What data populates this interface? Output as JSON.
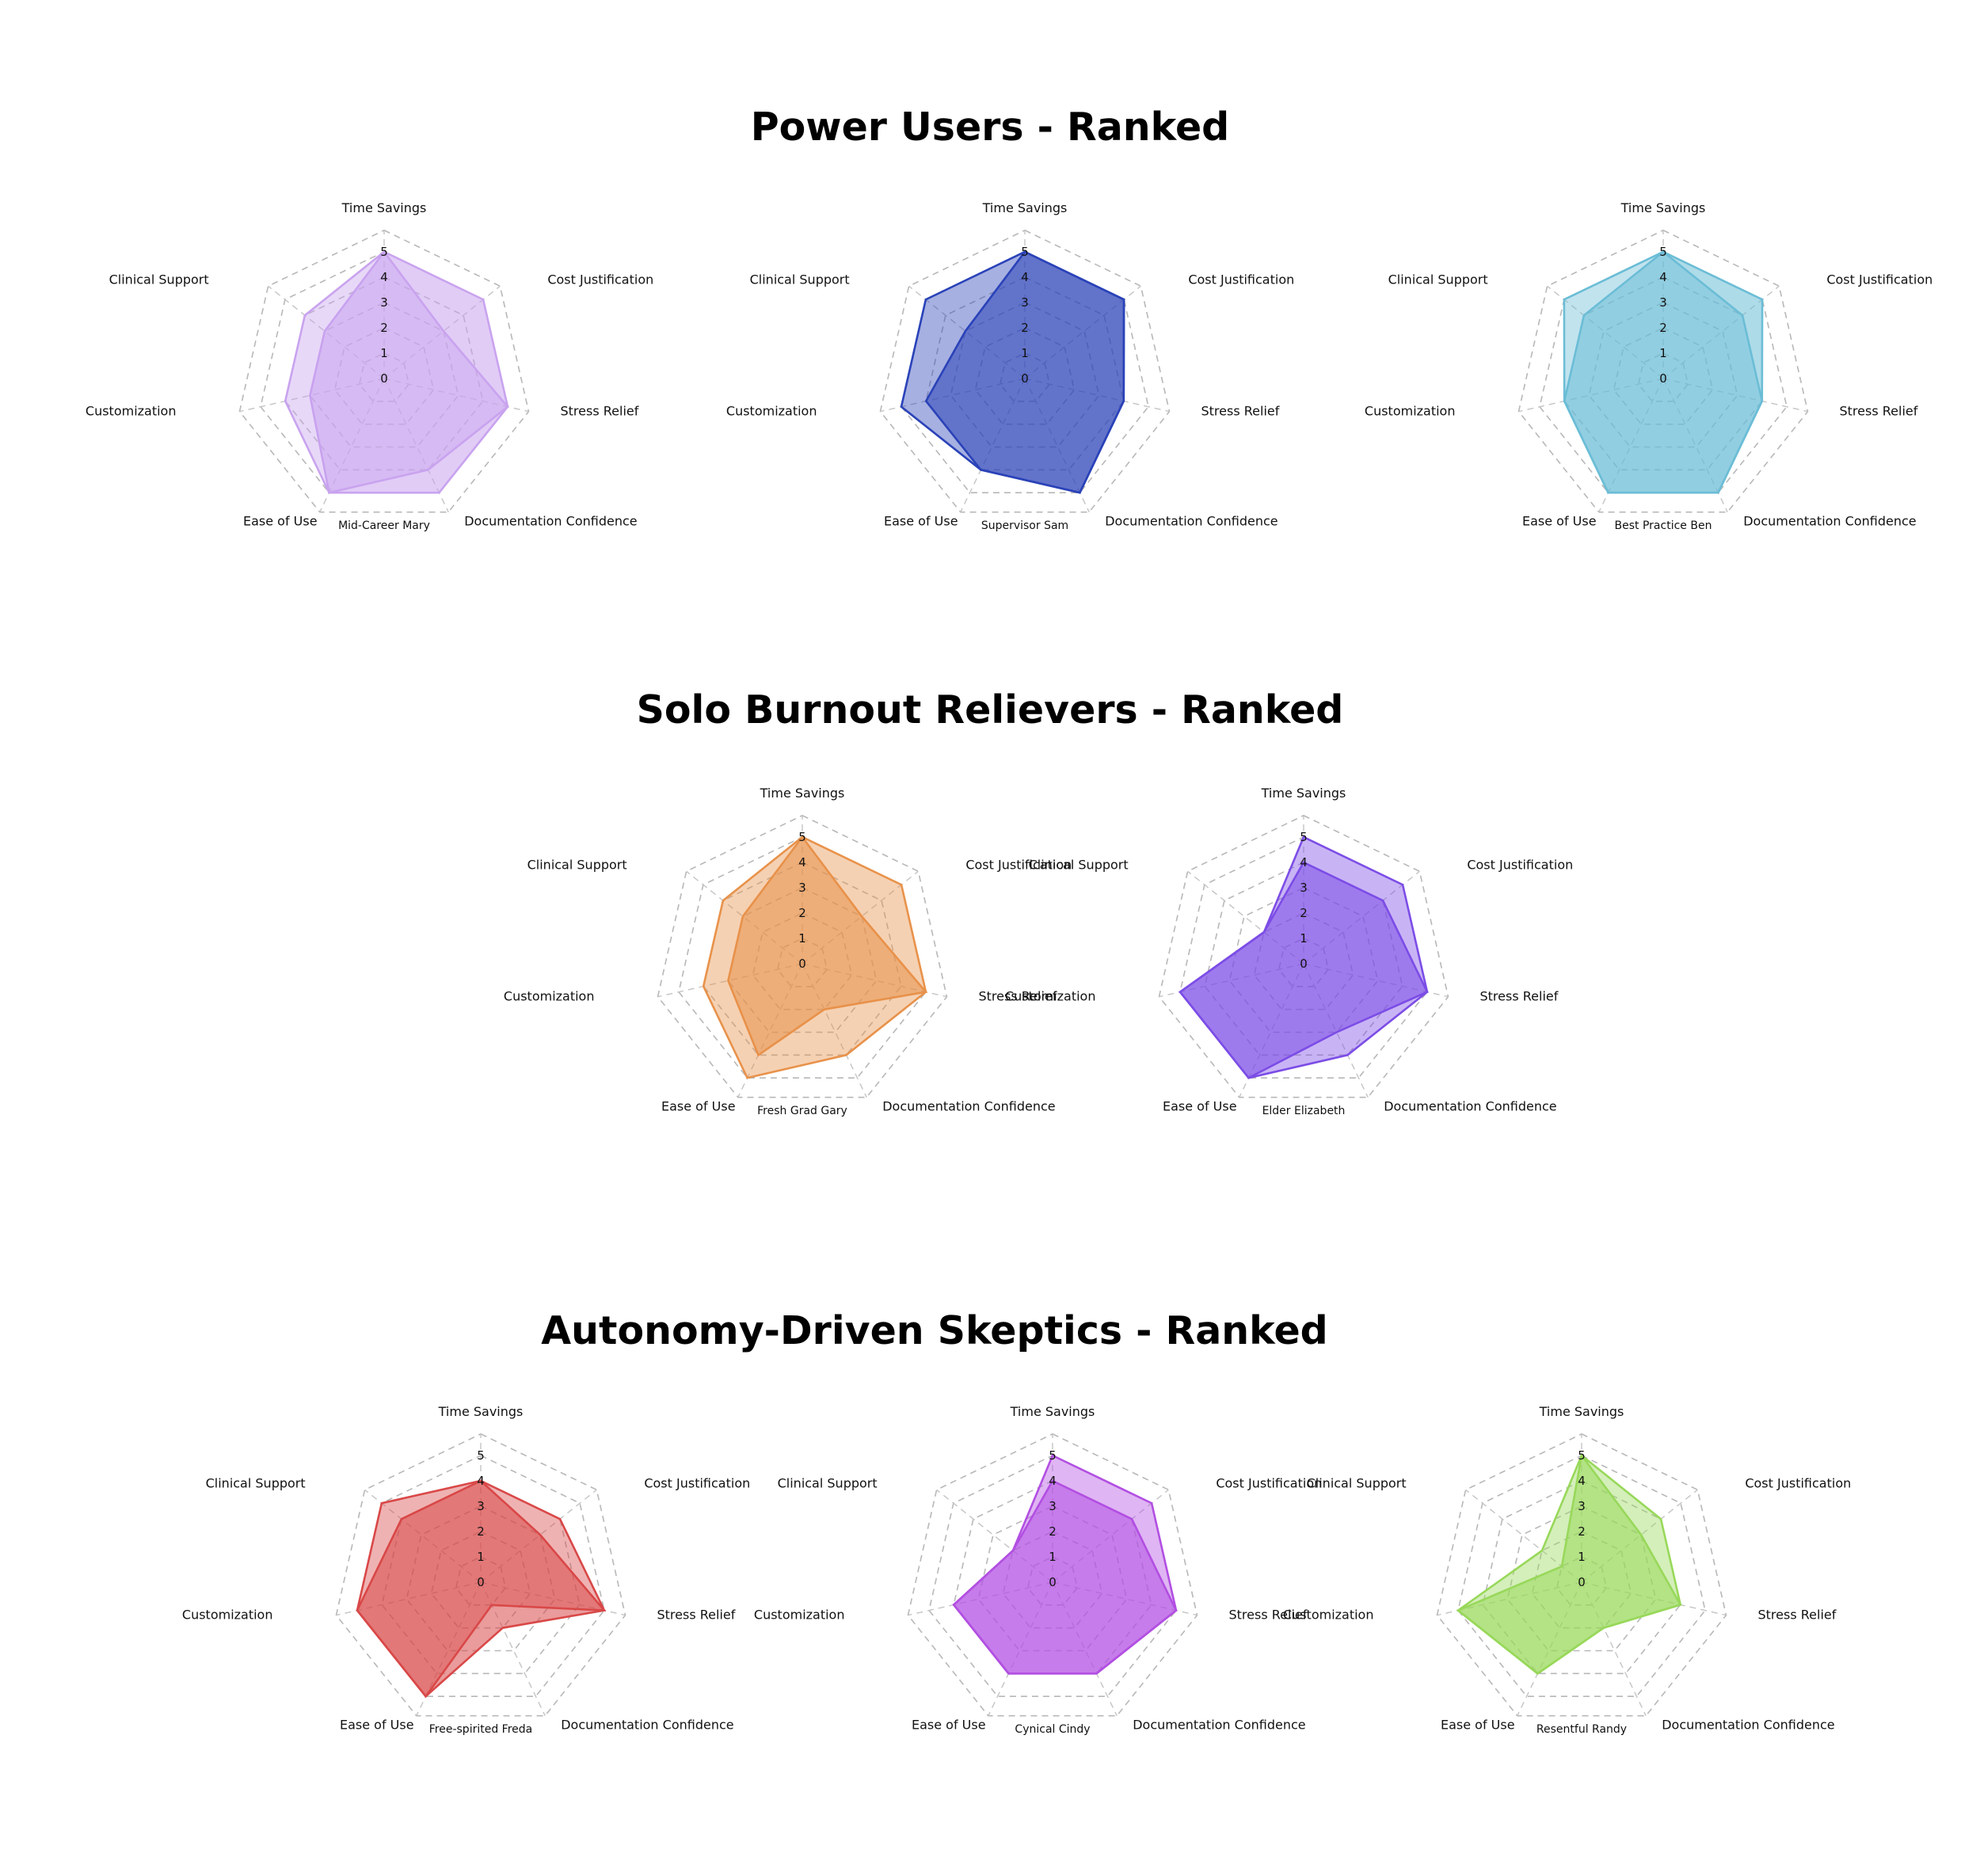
{
  "sections": [
    {
      "title": "Power Users - Ranked"
    },
    {
      "title": "Solo Burnout Relievers - Ranked"
    },
    {
      "title": "Autonomy-Driven Skeptics - Ranked"
    }
  ],
  "chart_data": [
    {
      "type": "radar",
      "section": "Power Users - Ranked",
      "label": "Mid-Career Mary",
      "color": "#c9a3ef",
      "axes": [
        "Time Savings",
        "Cost Justification",
        "Stress Relief",
        "Documentation Confidence",
        "Ease of Use",
        "Customization",
        "Clinical Support"
      ],
      "ticks": [
        0,
        1,
        2,
        3,
        4,
        5
      ],
      "range": [
        0,
        5
      ],
      "series": [
        {
          "values": [
            5,
            5,
            5,
            5,
            5,
            3,
            3
          ]
        },
        {
          "values": [
            5,
            3,
            5,
            4,
            5,
            4,
            4
          ]
        }
      ]
    },
    {
      "type": "radar",
      "section": "Power Users - Ranked",
      "label": "Supervisor Sam",
      "color": "#2a42b8",
      "axes": [
        "Time Savings",
        "Cost Justification",
        "Stress Relief",
        "Documentation Confidence",
        "Ease of Use",
        "Customization",
        "Clinical Support"
      ],
      "ticks": [
        0,
        1,
        2,
        3,
        4,
        5
      ],
      "range": [
        0,
        5
      ],
      "series": [
        {
          "values": [
            5,
            5,
            4,
            5,
            4,
            4,
            3
          ]
        },
        {
          "values": [
            5,
            5,
            4,
            5,
            4,
            5,
            5
          ]
        }
      ]
    },
    {
      "type": "radar",
      "section": "Power Users - Ranked",
      "label": "Best Practice Ben",
      "color": "#6bbdd6",
      "axes": [
        "Time Savings",
        "Cost Justification",
        "Stress Relief",
        "Documentation Confidence",
        "Ease of Use",
        "Customization",
        "Clinical Support"
      ],
      "ticks": [
        0,
        1,
        2,
        3,
        4,
        5
      ],
      "range": [
        0,
        5
      ],
      "series": [
        {
          "values": [
            5,
            5,
            4,
            5,
            5,
            4,
            4
          ]
        },
        {
          "values": [
            5,
            4,
            4,
            5,
            5,
            4,
            5
          ]
        }
      ]
    },
    {
      "type": "radar",
      "section": "Solo Burnout Relievers - Ranked",
      "label": "Fresh Grad Gary",
      "color": "#e8924a",
      "axes": [
        "Time Savings",
        "Cost Justification",
        "Stress Relief",
        "Documentation Confidence",
        "Ease of Use",
        "Customization",
        "Clinical Support"
      ],
      "ticks": [
        0,
        1,
        2,
        3,
        4,
        5
      ],
      "range": [
        0,
        5
      ],
      "series": [
        {
          "values": [
            5,
            3,
            5,
            2,
            4,
            3,
            3
          ]
        },
        {
          "values": [
            5,
            5,
            5,
            4,
            5,
            4,
            4
          ]
        }
      ]
    },
    {
      "type": "radar",
      "section": "Solo Burnout Relievers - Ranked",
      "label": "Elder Elizabeth",
      "color": "#7c4de6",
      "axes": [
        "Time Savings",
        "Cost Justification",
        "Stress Relief",
        "Documentation Confidence",
        "Ease of Use",
        "Customization",
        "Clinical Support"
      ],
      "ticks": [
        0,
        1,
        2,
        3,
        4,
        5
      ],
      "range": [
        0,
        5
      ],
      "series": [
        {
          "values": [
            4,
            4,
            5,
            3,
            5,
            5,
            2
          ]
        },
        {
          "values": [
            5,
            5,
            5,
            4,
            5,
            5,
            2
          ]
        }
      ]
    },
    {
      "type": "radar",
      "section": "Autonomy-Driven Skeptics - Ranked",
      "label": "Free-spirited Freda",
      "color": "#d94848",
      "axes": [
        "Time Savings",
        "Cost Justification",
        "Stress Relief",
        "Documentation Confidence",
        "Ease of Use",
        "Customization",
        "Clinical Support"
      ],
      "ticks": [
        0,
        1,
        2,
        3,
        4,
        5
      ],
      "range": [
        0,
        5
      ],
      "series": [
        {
          "values": [
            4,
            3,
            5,
            2,
            5,
            5,
            4
          ]
        },
        {
          "values": [
            4,
            4,
            5,
            1,
            5,
            5,
            5
          ]
        }
      ]
    },
    {
      "type": "radar",
      "section": "Autonomy-Driven Skeptics - Ranked",
      "label": "Cynical Cindy",
      "color": "#b24fe2",
      "axes": [
        "Time Savings",
        "Cost Justification",
        "Stress Relief",
        "Documentation Confidence",
        "Ease of Use",
        "Customization",
        "Clinical Support"
      ],
      "ticks": [
        0,
        1,
        2,
        3,
        4,
        5
      ],
      "range": [
        0,
        5
      ],
      "series": [
        {
          "values": [
            4,
            4,
            5,
            4,
            4,
            4,
            2
          ]
        },
        {
          "values": [
            5,
            5,
            5,
            4,
            4,
            4,
            2
          ]
        }
      ]
    },
    {
      "type": "radar",
      "section": "Autonomy-Driven Skeptics - Ranked",
      "label": "Resentful Randy",
      "color": "#98d85a",
      "axes": [
        "Time Savings",
        "Cost Justification",
        "Stress Relief",
        "Documentation Confidence",
        "Ease of Use",
        "Customization",
        "Clinical Support"
      ],
      "ticks": [
        0,
        1,
        2,
        3,
        4,
        5
      ],
      "range": [
        0,
        5
      ],
      "series": [
        {
          "values": [
            5,
            3,
            4,
            2,
            4,
            5,
            1
          ]
        },
        {
          "values": [
            5,
            4,
            4,
            2,
            4,
            5,
            2
          ]
        }
      ]
    }
  ]
}
